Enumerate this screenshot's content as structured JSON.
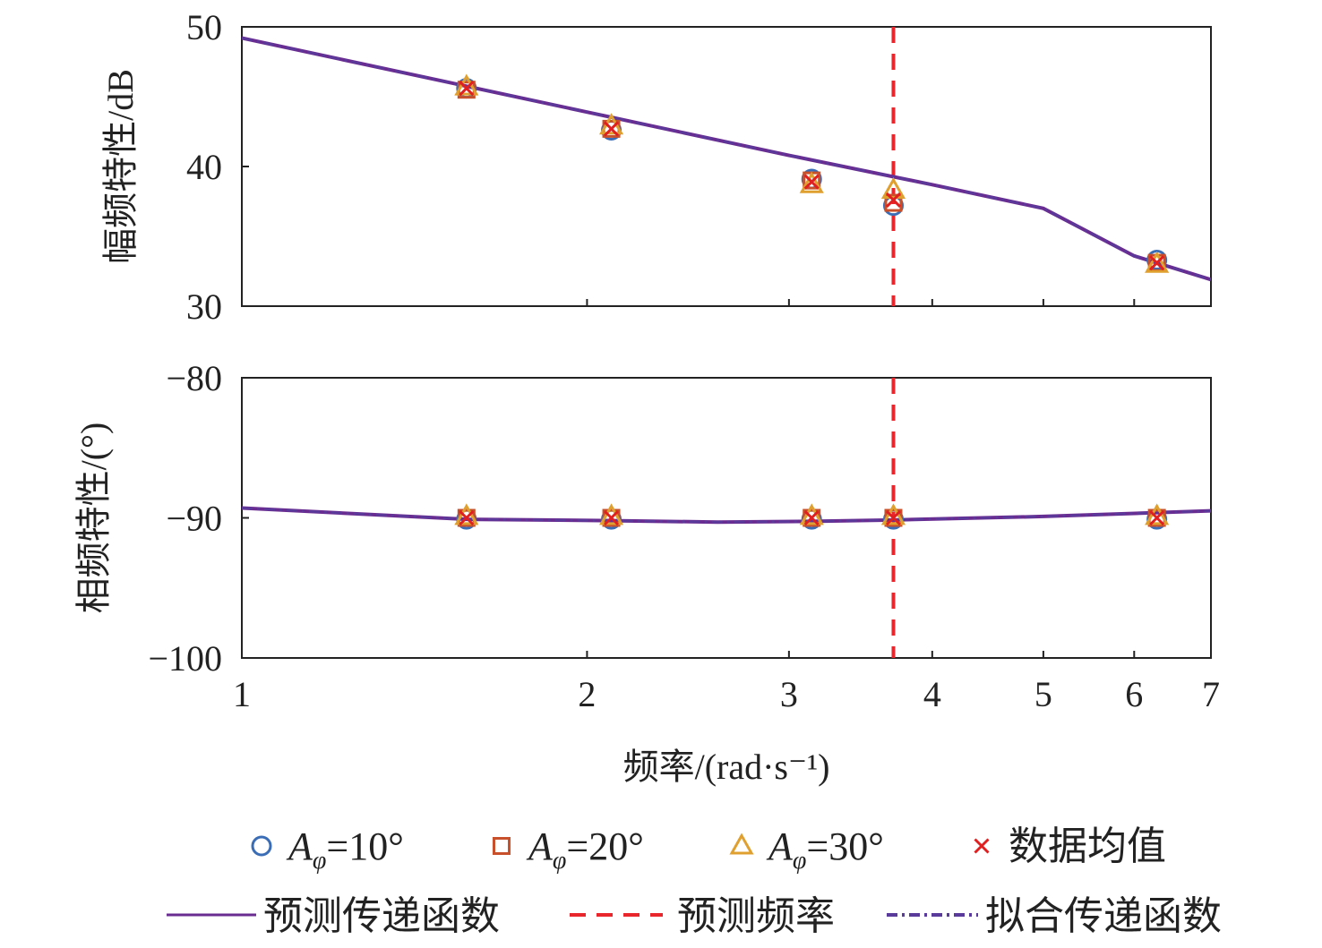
{
  "chart_data": [
    {
      "type": "line",
      "panel": "magnitude",
      "ylabel": "幅频特性/dB",
      "xscale": "log",
      "xlim": [
        1,
        7
      ],
      "ylim": [
        30,
        50
      ],
      "yticks": [
        "30",
        "40",
        "50"
      ],
      "series": [
        {
          "name": "A_φ=10°",
          "marker": "circle",
          "x": [
            1.57,
            2.1,
            3.14,
            3.7,
            6.28
          ],
          "y": [
            45.6,
            42.6,
            39.1,
            37.2,
            33.3
          ]
        },
        {
          "name": "A_φ=20°",
          "marker": "square",
          "x": [
            1.57,
            2.1,
            3.14,
            3.7,
            6.28
          ],
          "y": [
            45.5,
            42.7,
            39.0,
            37.4,
            33.1
          ]
        },
        {
          "name": "A_φ=30°",
          "marker": "triangle",
          "x": [
            1.57,
            2.1,
            3.14,
            3.7,
            6.28
          ],
          "y": [
            45.7,
            42.9,
            38.7,
            38.3,
            33.0
          ]
        },
        {
          "name": "数据均值",
          "marker": "x",
          "x": [
            1.57,
            2.1,
            3.14,
            3.7,
            6.28
          ],
          "y": [
            45.6,
            42.7,
            38.9,
            37.6,
            33.1
          ]
        },
        {
          "name": "预测传递函数",
          "style": "solid",
          "x": [
            1,
            1.5,
            2,
            3,
            4,
            5,
            6,
            7
          ],
          "y": [
            49.2,
            46.1,
            43.9,
            40.8,
            38.7,
            37.0,
            33.6,
            31.9
          ]
        },
        {
          "name": "拟合传递函数",
          "style": "dashdot",
          "x": [
            1,
            1.5,
            2,
            3,
            4,
            5,
            6,
            7
          ],
          "y": [
            49.2,
            46.1,
            43.9,
            40.8,
            38.7,
            37.0,
            33.6,
            31.9
          ]
        }
      ],
      "vline": {
        "name": "预测频率",
        "x": 3.7
      }
    },
    {
      "type": "line",
      "panel": "phase",
      "ylabel": "相频特性/(°)",
      "xlabel": "频率/(rad·s⁻¹)",
      "xscale": "log",
      "xlim": [
        1,
        7
      ],
      "ylim": [
        -100,
        -80
      ],
      "yticks": [
        "−100",
        "−90",
        "−80"
      ],
      "xticks": [
        "1",
        "2",
        "3",
        "4",
        "5",
        "6",
        "7"
      ],
      "series": [
        {
          "name": "A_φ=10°",
          "marker": "circle",
          "x": [
            1.57,
            2.1,
            3.14,
            3.7,
            6.28
          ],
          "y": [
            -90.1,
            -90.1,
            -90.1,
            -90.1,
            -90.1
          ]
        },
        {
          "name": "A_φ=20°",
          "marker": "square",
          "x": [
            1.57,
            2.1,
            3.14,
            3.7,
            6.28
          ],
          "y": [
            -90.0,
            -90.0,
            -90.0,
            -90.0,
            -90.0
          ]
        },
        {
          "name": "A_φ=30°",
          "marker": "triangle",
          "x": [
            1.57,
            2.1,
            3.14,
            3.7,
            6.28
          ],
          "y": [
            -89.9,
            -89.9,
            -89.9,
            -89.9,
            -89.9
          ]
        },
        {
          "name": "数据均值",
          "marker": "x",
          "x": [
            1.57,
            2.1,
            3.14,
            3.7,
            6.28
          ],
          "y": [
            -90.0,
            -90.0,
            -90.0,
            -90.0,
            -90.0
          ]
        },
        {
          "name": "预测传递函数",
          "style": "solid",
          "x": [
            1,
            1.57,
            2.1,
            2.6,
            3.14,
            3.7,
            5,
            7
          ],
          "y": [
            -89.3,
            -90.1,
            -90.2,
            -90.3,
            -90.25,
            -90.15,
            -89.9,
            -89.5
          ]
        },
        {
          "name": "拟合传递函数",
          "style": "dashdot",
          "x": [
            1,
            1.57,
            2.1,
            2.6,
            3.14,
            3.7,
            5,
            7
          ],
          "y": [
            -89.3,
            -90.1,
            -90.2,
            -90.3,
            -90.25,
            -90.15,
            -89.9,
            -89.5
          ]
        }
      ],
      "vline": {
        "name": "预测频率",
        "x": 3.7
      }
    }
  ],
  "legend": {
    "row1": [
      {
        "marker": "circle",
        "sym": "A",
        "sub": "φ",
        "text": "=10°"
      },
      {
        "marker": "square",
        "sym": "A",
        "sub": "φ",
        "text": "=20°"
      },
      {
        "marker": "triangle",
        "sym": "A",
        "sub": "φ",
        "text": "=30°"
      },
      {
        "marker": "x",
        "text": "数据均值"
      }
    ],
    "row2": [
      {
        "style": "solid",
        "text": "预测传递函数"
      },
      {
        "style": "dashed",
        "text": "预测频率"
      },
      {
        "style": "dashdot",
        "text": "拟合传递函数"
      }
    ]
  },
  "colors": {
    "circle": "#3a6db5",
    "square": "#c8502a",
    "triangle": "#e0a030",
    "x": "#e02020",
    "line": "#6a2c91",
    "vline": "#e8262b"
  }
}
